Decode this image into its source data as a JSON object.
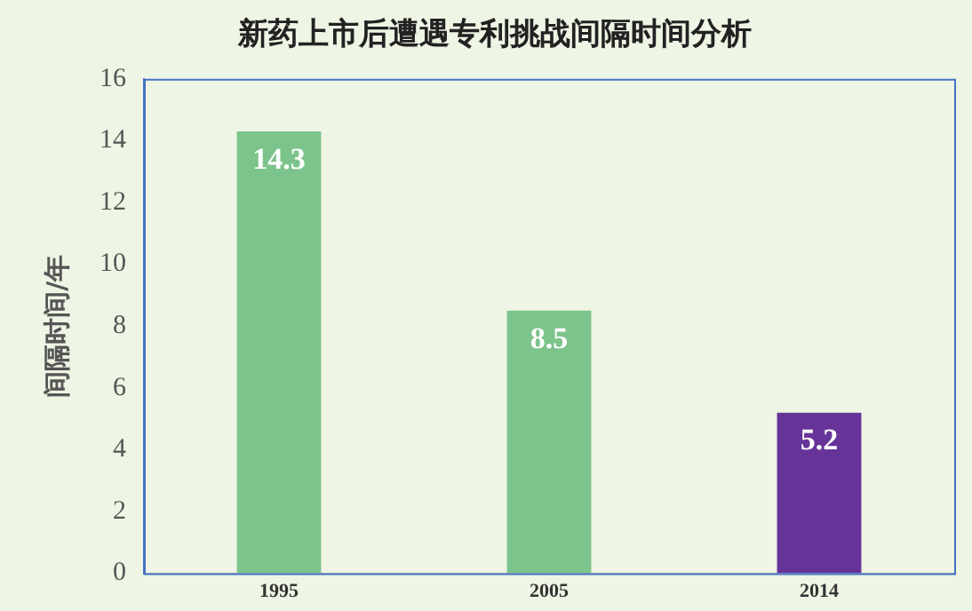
{
  "chart_data": {
    "type": "bar",
    "title": "新药上市后遭遇专利挑战间隔时间分析",
    "ylabel": "间隔时间/年",
    "categories": [
      "1995",
      "2005",
      "2014"
    ],
    "values": [
      14.3,
      8.5,
      5.2
    ],
    "colors": [
      "#7dc48c",
      "#7dc48c",
      "#663399"
    ],
    "ylim": [
      0,
      16
    ],
    "yticks": [
      0,
      2,
      4,
      6,
      8,
      10,
      12,
      14,
      16
    ],
    "grid": false,
    "legend": false,
    "data_labels": true
  }
}
